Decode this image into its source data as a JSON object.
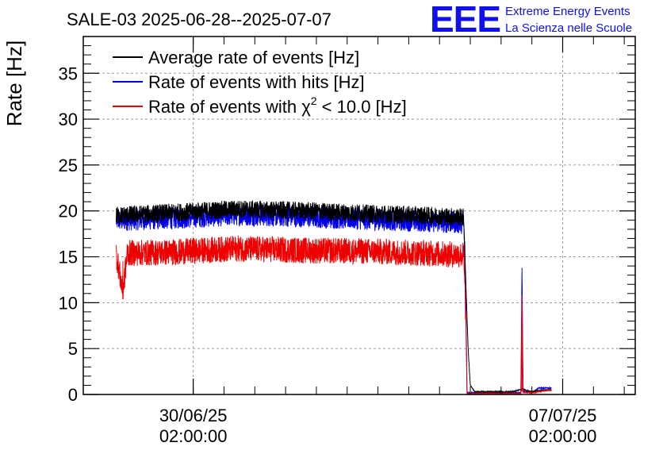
{
  "chart_data": {
    "type": "line",
    "title": "SALE-03 2025-06-28--2025-07-07",
    "ylabel": "Rate [Hz]",
    "xlabel": "",
    "ylim": [
      0,
      39
    ],
    "yticks": [
      0,
      5,
      10,
      15,
      20,
      25,
      30,
      35
    ],
    "xlim_hours": [
      0,
      251
    ],
    "xticks": [
      {
        "hour": 50,
        "label_date": "30/06/25",
        "label_time": "02:00:00"
      },
      {
        "hour": 218,
        "label_date": "07/07/25",
        "label_time": "02:00:00"
      }
    ],
    "grid": true,
    "legend_position": "top-left",
    "series": [
      {
        "name": "Average rate of events [Hz]",
        "color": "#000000",
        "points": [
          [
            15,
            19.5
          ],
          [
            40,
            19.8
          ],
          [
            70,
            20.2
          ],
          [
            100,
            20.0
          ],
          [
            130,
            19.7
          ],
          [
            155,
            19.5
          ],
          [
            173,
            19.3
          ],
          [
            174,
            12.0
          ],
          [
            175,
            5.0
          ],
          [
            176,
            1.0
          ],
          [
            178,
            0.3
          ],
          [
            195,
            0.3
          ],
          [
            200,
            0.6
          ],
          [
            202,
            0.4
          ],
          [
            204,
            0.3
          ],
          [
            207,
            0.4
          ],
          [
            210,
            0.5
          ],
          [
            213,
            0.5
          ]
        ]
      },
      {
        "name": "Rate of events with hits [Hz]",
        "color": "#0000ee",
        "points": [
          [
            15,
            19.0
          ],
          [
            40,
            19.2
          ],
          [
            70,
            19.6
          ],
          [
            100,
            19.4
          ],
          [
            130,
            19.1
          ],
          [
            155,
            18.9
          ],
          [
            173,
            18.7
          ],
          [
            174,
            10.0
          ],
          [
            174.5,
            0.2
          ],
          [
            195,
            0.2
          ],
          [
            199,
            0.2
          ],
          [
            199.5,
            13.8
          ],
          [
            200,
            0.3
          ],
          [
            205,
            0.3
          ],
          [
            207,
            0.7
          ],
          [
            213,
            0.7
          ]
        ]
      },
      {
        "name": "Rate of events with χ² < 10.0 [Hz]",
        "color": "#ee0000",
        "subscript_label": "2",
        "points": [
          [
            15,
            15.3
          ],
          [
            18,
            11.2
          ],
          [
            20,
            15.4
          ],
          [
            40,
            15.5
          ],
          [
            70,
            15.9
          ],
          [
            100,
            15.7
          ],
          [
            130,
            15.6
          ],
          [
            155,
            15.4
          ],
          [
            173,
            15.2
          ],
          [
            174,
            8.0
          ],
          [
            174.5,
            0.1
          ],
          [
            195,
            0.1
          ],
          [
            199,
            0.1
          ],
          [
            199.5,
            10.8
          ],
          [
            200,
            0.2
          ],
          [
            205,
            0.2
          ],
          [
            207,
            0.3
          ],
          [
            213,
            0.5
          ]
        ]
      }
    ],
    "legend_labels": {
      "s0": "Average rate of events [Hz]",
      "s1": "Rate of events with hits [Hz]",
      "s2_pre": "Rate of events with χ",
      "s2_sup": "2",
      "s2_post": " < 10.0 [Hz]"
    }
  },
  "logo": {
    "mark": "EEE",
    "line1": "Extreme Energy Events",
    "line2": "La Scienza nelle Scuole",
    "color": "#1010ee"
  }
}
